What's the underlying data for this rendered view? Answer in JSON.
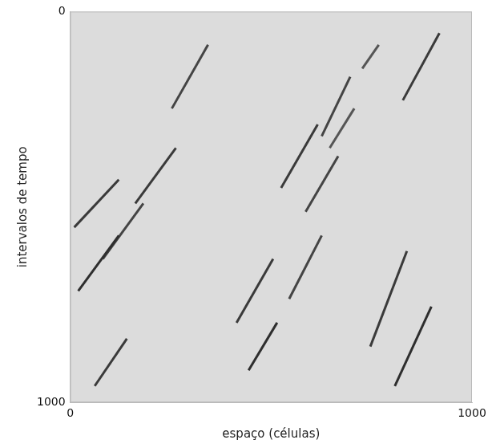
{
  "chart_data": {
    "type": "line",
    "xlabel": "espaço (células)",
    "ylabel": "intervalos de tempo",
    "xlim": [
      0,
      1000
    ],
    "xticks": [
      0,
      1000
    ],
    "ylim": [
      1000,
      0
    ],
    "yticks": [
      0,
      1000
    ],
    "grid": false,
    "series": [
      {
        "color": "#3a3a3a",
        "x": [
          919,
          828
        ],
        "values": [
          55,
          227
        ]
      },
      {
        "color": "#3a3a3a",
        "x": [
          838,
          747
        ],
        "values": [
          613,
          857
        ]
      },
      {
        "color": "#2e2e2e",
        "x": [
          899,
          808
        ],
        "values": [
          755,
          958
        ]
      },
      {
        "color": "#3a3a3a",
        "x": [
          121,
          10
        ],
        "values": [
          430,
          552
        ]
      },
      {
        "color": "#2e2e2e",
        "x": [
          121,
          20
        ],
        "values": [
          573,
          715
        ]
      },
      {
        "color": "#444444",
        "x": [
          182,
          81
        ],
        "values": [
          491,
          633
        ]
      },
      {
        "color": "#3a3a3a",
        "x": [
          263,
          162
        ],
        "values": [
          349,
          491
        ]
      },
      {
        "color": "#3a3a3a",
        "x": [
          505,
          414
        ],
        "values": [
          633,
          796
        ]
      },
      {
        "color": "#2e2e2e",
        "x": [
          515,
          444
        ],
        "values": [
          796,
          918
        ]
      },
      {
        "color": "#444444",
        "x": [
          667,
          586
        ],
        "values": [
          370,
          512
        ]
      },
      {
        "color": "#444444",
        "x": [
          343,
          253
        ],
        "values": [
          85,
          248
        ]
      },
      {
        "color": "#444444",
        "x": [
          697,
          626
        ],
        "values": [
          167,
          319
        ]
      },
      {
        "color": "#3a3a3a",
        "x": [
          616,
          525
        ],
        "values": [
          289,
          451
        ]
      },
      {
        "color": "#555555",
        "x": [
          707,
          646
        ],
        "values": [
          248,
          349
        ]
      },
      {
        "color": "#3a3a3a",
        "x": [
          141,
          61
        ],
        "values": [
          837,
          958
        ]
      },
      {
        "color": "#555555",
        "x": [
          768,
          727
        ],
        "values": [
          85,
          146
        ]
      },
      {
        "color": "#444444",
        "x": [
          626,
          545
        ],
        "values": [
          573,
          735
        ]
      }
    ]
  }
}
